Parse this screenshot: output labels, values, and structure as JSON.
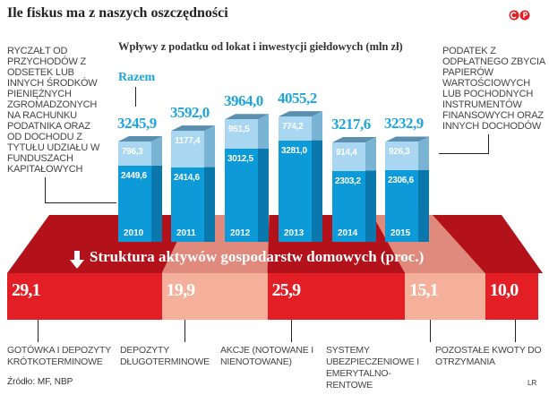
{
  "title": "Ile fiskus ma z naszych oszczędności",
  "logo_text": "GP",
  "colors": {
    "bar_lower": "#0c9ad8",
    "bar_upper": "#a9d6f0",
    "total": "#1ea5e0",
    "red": "#e31e24",
    "salmon": "#f4b09a",
    "dark_red": "#b3121a"
  },
  "chart_data": [
    {
      "type": "bar",
      "stacked": true,
      "title": "Wpływy z podatku od lokat i inwestycji giełdowych (mln zł)",
      "categories": [
        "2010",
        "2011",
        "2012",
        "2013",
        "2014",
        "2015"
      ],
      "series": [
        {
          "name": "Ryczałt od przychodów z odsetek lub innych środków pieniężnych zgromadzonych na rachunku podatnika oraz od dochodu z tytułu udziału w funduszach kapitałowych",
          "values": [
            2449.6,
            2414.6,
            3012.5,
            3281.0,
            2303.2,
            2306.6
          ],
          "labels": [
            "2449,6",
            "2414,6",
            "3012,5",
            "3281,0",
            "2303,2",
            "2306,6"
          ]
        },
        {
          "name": "Podatek z odpłatnego zbycia papierów wartościowych lub pochodnych instrumentów finansowych oraz innych dochodów",
          "values": [
            796.3,
            1177.4,
            951.5,
            774.2,
            914.4,
            926.3
          ],
          "labels": [
            "796,3",
            "1177,4",
            "951,5",
            "774,2",
            "914,4",
            "926,3"
          ]
        }
      ],
      "totals_label": "Razem",
      "totals": [
        3245.9,
        3592.0,
        3964.0,
        4055.2,
        3217.6,
        3232.9
      ],
      "totals_text": [
        "3245,9",
        "3592,0",
        "3964,0",
        "4055,2",
        "3217,6",
        "3232,9"
      ],
      "left_note": "Ryczałt od przychodów z odsetek lub innych środków pieniężnych zgromadzonych na rachunku podatnika oraz od dochodu z tytułu udziału w funduszach kapitałowych",
      "right_note": "Podatek z odpłatnego zbycia papierów wartościowych lub pochodnych instrumentów finansowych oraz innych dochodów"
    },
    {
      "type": "bar",
      "orientation": "horizontal-stacked-100",
      "title": "Struktura aktywów gospodarstw domowych (proc.)",
      "categories": [
        "Gotówka i depozyty krótkoterminowe",
        "Depozyty długoterminowe",
        "Akcje (notowane i nienotowane)",
        "Systemy ubezpieczeniowe i emerytalno-rentowe",
        "Pozostałe kwoty do otrzymania"
      ],
      "values": [
        29.1,
        19.9,
        25.9,
        15.1,
        10.0
      ],
      "labels": [
        "29,1",
        "19,9",
        "25,9",
        "15,1",
        "10,0"
      ]
    }
  ],
  "source": "Źródło: MF, NBP",
  "author": "LR"
}
